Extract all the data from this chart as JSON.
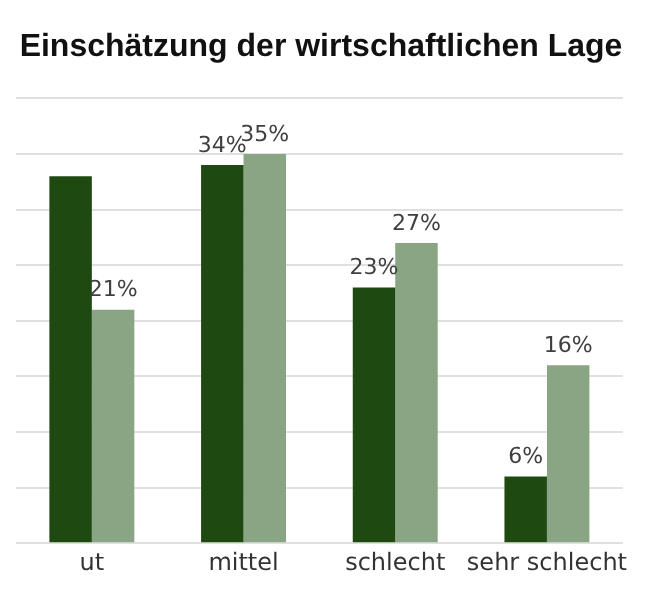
{
  "chart_data": {
    "type": "bar",
    "title": "Einschätzung der wirtschaftlichen Lage",
    "categories": [
      "ut",
      "mittel",
      "schlecht",
      "sehr schlecht"
    ],
    "series": [
      {
        "color": "#1e4a12",
        "values": [
          33,
          34,
          23,
          6
        ],
        "value_labels": [
          null,
          "34%",
          "23%",
          "6%"
        ]
      },
      {
        "color": "#8aa583",
        "values": [
          21,
          35,
          27,
          16
        ],
        "value_labels": [
          "21%",
          "35%",
          "27%",
          "16%"
        ]
      }
    ],
    "ylim": [
      0,
      40
    ],
    "yticks": [
      {
        "value": 0,
        "label": null
      },
      {
        "value": 5,
        "label": null
      },
      {
        "value": 10,
        "label": null
      },
      {
        "value": 15,
        "label": null
      },
      {
        "value": 20,
        "label": null
      },
      {
        "value": 25,
        "label": null
      },
      {
        "value": 30,
        "label": null
      },
      {
        "value": 35,
        "label": null
      },
      {
        "value": 40,
        "label": null
      }
    ],
    "grid": "y",
    "tick_labels": "x",
    "legend": false
  }
}
